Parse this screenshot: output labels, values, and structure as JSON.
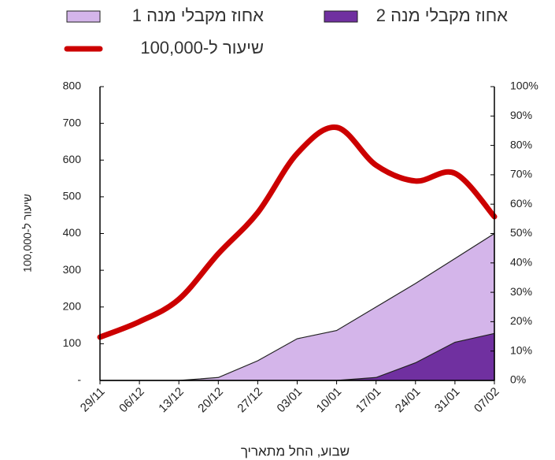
{
  "chart_data": {
    "type": "area_line",
    "x_label": "שבוע, החל מתאריך",
    "y_label": "שיעור ל-100,000",
    "categories": [
      "29/11",
      "06/12",
      "13/12",
      "20/12",
      "27/12",
      "03/01",
      "10/01",
      "17/01",
      "24/01",
      "31/01",
      "07/02"
    ],
    "series": [
      {
        "name": "אחוז מקבלי מנה 1",
        "color": "#d4b5ea",
        "axis": "y2",
        "kind": "area",
        "values": [
          0,
          0,
          0,
          1,
          6.7,
          14.2,
          17,
          25,
          33,
          41.5,
          50
        ]
      },
      {
        "name": "אחוז מקבלי מנה 2",
        "color": "#7030a0",
        "axis": "y2",
        "kind": "area",
        "values": [
          0,
          0,
          0,
          0,
          0,
          0,
          0,
          1,
          6,
          13,
          16
        ]
      },
      {
        "name": "שיעור ל-100,000",
        "color": "#cc0000",
        "axis": "y",
        "kind": "line",
        "values": [
          118,
          160,
          221,
          345,
          457,
          618,
          689,
          586,
          543,
          564,
          446
        ]
      }
    ],
    "ylim": [
      0,
      800
    ],
    "yticks": [
      {
        "value": 0,
        "label": "-"
      },
      100,
      200,
      300,
      400,
      500,
      600,
      700,
      800
    ],
    "y2lim": [
      0,
      100
    ],
    "y2ticks": [
      {
        "value": 0,
        "label": "0%"
      },
      {
        "value": 10,
        "label": "10%"
      },
      {
        "value": 20,
        "label": "20%"
      },
      {
        "value": 30,
        "label": "30%"
      },
      {
        "value": 40,
        "label": "40%"
      },
      {
        "value": 50,
        "label": "50%"
      },
      {
        "value": 60,
        "label": "60%"
      },
      {
        "value": 70,
        "label": "70%"
      },
      {
        "value": 80,
        "label": "80%"
      },
      {
        "value": 90,
        "label": "90%"
      },
      {
        "value": 100,
        "label": "100%"
      }
    ]
  }
}
